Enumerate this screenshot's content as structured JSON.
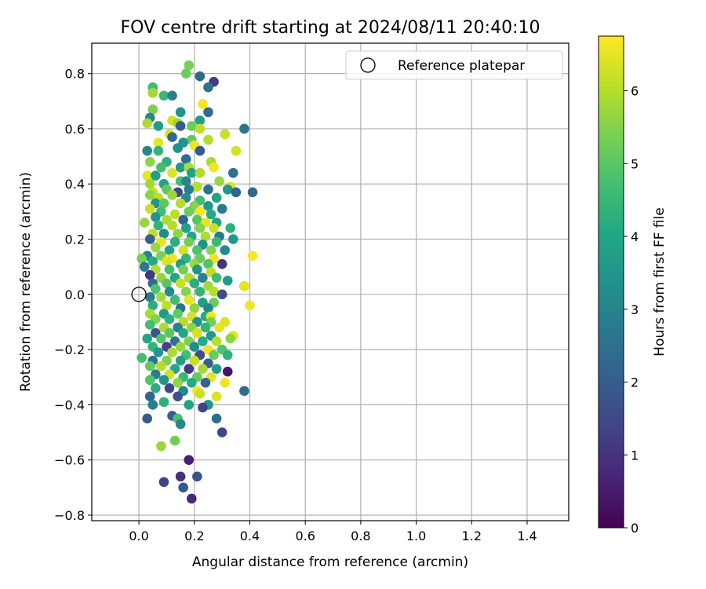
{
  "chart_data": {
    "type": "scatter",
    "title": "FOV centre drift starting at 2024/08/11 20:40:10",
    "xlabel": "Angular distance from reference (arcmin)",
    "ylabel": "Rotation from reference (arcmin)",
    "xlim": [
      -0.17,
      1.55
    ],
    "ylim": [
      -0.82,
      0.91
    ],
    "xticks": [
      0.0,
      0.2,
      0.4,
      0.6,
      0.8,
      1.0,
      1.2,
      1.4
    ],
    "xtick_labels": [
      "0.0",
      "0.2",
      "0.4",
      "0.6",
      "0.8",
      "1.0",
      "1.2",
      "1.4"
    ],
    "yticks": [
      -0.8,
      -0.6,
      -0.4,
      -0.2,
      0.0,
      0.2,
      0.4,
      0.6,
      0.8
    ],
    "ytick_labels": [
      "−0.8",
      "−0.6",
      "−0.4",
      "−0.2",
      "0.0",
      "0.2",
      "0.4",
      "0.6",
      "0.8"
    ],
    "grid": true,
    "legend": {
      "placement": "top-right",
      "entries": [
        "Reference platepar"
      ]
    },
    "reference_point": {
      "x": 0.0,
      "y": 0.0,
      "label": "Reference platepar"
    },
    "colorbar": {
      "label": "Hours from first FF file",
      "range": [
        0,
        6.75
      ],
      "ticks": [
        0,
        1,
        2,
        3,
        4,
        5,
        6
      ],
      "tick_labels": [
        "0",
        "1",
        "2",
        "3",
        "4",
        "5",
        "6"
      ],
      "colormap": "viridis"
    },
    "points": [
      [
        0.18,
        0.83,
        5.4
      ],
      [
        0.17,
        0.8,
        5.2
      ],
      [
        0.22,
        0.79,
        2.3
      ],
      [
        0.27,
        0.77,
        1.2
      ],
      [
        0.05,
        0.75,
        4.6
      ],
      [
        0.25,
        0.75,
        2.6
      ],
      [
        0.05,
        0.73,
        5.8
      ],
      [
        0.09,
        0.72,
        4.5
      ],
      [
        0.12,
        0.72,
        3.0
      ],
      [
        0.23,
        0.69,
        6.7
      ],
      [
        0.05,
        0.67,
        5.4
      ],
      [
        0.15,
        0.66,
        3.4
      ],
      [
        0.25,
        0.66,
        2.4
      ],
      [
        0.04,
        0.64,
        3.1
      ],
      [
        0.12,
        0.63,
        6.3
      ],
      [
        0.14,
        0.62,
        5.7
      ],
      [
        0.22,
        0.63,
        3.8
      ],
      [
        0.03,
        0.62,
        5.9
      ],
      [
        0.07,
        0.61,
        3.7
      ],
      [
        0.15,
        0.61,
        2.0
      ],
      [
        0.19,
        0.61,
        5.2
      ],
      [
        0.22,
        0.6,
        6.1
      ],
      [
        0.38,
        0.6,
        2.6
      ],
      [
        0.11,
        0.58,
        6.4
      ],
      [
        0.25,
        0.56,
        6.0
      ],
      [
        0.31,
        0.58,
        6.2
      ],
      [
        0.12,
        0.57,
        2.3
      ],
      [
        0.07,
        0.55,
        6.5
      ],
      [
        0.19,
        0.56,
        5.1
      ],
      [
        0.16,
        0.55,
        3.5
      ],
      [
        0.03,
        0.52,
        3.1
      ],
      [
        0.07,
        0.52,
        4.4
      ],
      [
        0.14,
        0.53,
        3.4
      ],
      [
        0.2,
        0.54,
        6.6
      ],
      [
        0.22,
        0.52,
        1.9
      ],
      [
        0.35,
        0.52,
        6.3
      ],
      [
        0.04,
        0.48,
        5.6
      ],
      [
        0.1,
        0.48,
        4.3
      ],
      [
        0.17,
        0.49,
        2.4
      ],
      [
        0.26,
        0.48,
        5.9
      ],
      [
        0.08,
        0.46,
        4.7
      ],
      [
        0.15,
        0.46,
        3.6
      ],
      [
        0.18,
        0.46,
        5.9
      ],
      [
        0.27,
        0.46,
        6.6
      ],
      [
        0.34,
        0.44,
        2.5
      ],
      [
        0.03,
        0.43,
        6.5
      ],
      [
        0.06,
        0.43,
        3.8
      ],
      [
        0.12,
        0.44,
        6.4
      ],
      [
        0.19,
        0.44,
        3.9
      ],
      [
        0.22,
        0.44,
        5.9
      ],
      [
        0.29,
        0.41,
        5.7
      ],
      [
        0.04,
        0.4,
        5.8
      ],
      [
        0.09,
        0.4,
        3.9
      ],
      [
        0.15,
        0.41,
        4.7
      ],
      [
        0.17,
        0.41,
        3.1
      ],
      [
        0.21,
        0.39,
        6.0
      ],
      [
        0.33,
        0.39,
        6.4
      ],
      [
        0.05,
        0.37,
        6.1
      ],
      [
        0.1,
        0.38,
        5.1
      ],
      [
        0.14,
        0.37,
        1.4
      ],
      [
        0.18,
        0.38,
        2.8
      ],
      [
        0.25,
        0.38,
        2.5
      ],
      [
        0.32,
        0.38,
        3.6
      ],
      [
        0.35,
        0.37,
        2.2
      ],
      [
        0.41,
        0.37,
        2.3
      ],
      [
        0.04,
        0.36,
        5.6
      ],
      [
        0.07,
        0.35,
        6.1
      ],
      [
        0.12,
        0.36,
        5.7
      ],
      [
        0.17,
        0.35,
        3.2
      ],
      [
        0.22,
        0.34,
        4.7
      ],
      [
        0.28,
        0.35,
        3.9
      ],
      [
        0.06,
        0.33,
        3.4
      ],
      [
        0.09,
        0.33,
        5.0
      ],
      [
        0.15,
        0.33,
        6.0
      ],
      [
        0.2,
        0.32,
        5.5
      ],
      [
        0.25,
        0.32,
        3.6
      ],
      [
        0.3,
        0.31,
        2.8
      ],
      [
        0.04,
        0.31,
        6.2
      ],
      [
        0.08,
        0.3,
        4.6
      ],
      [
        0.13,
        0.29,
        6.1
      ],
      [
        0.18,
        0.3,
        5.2
      ],
      [
        0.22,
        0.3,
        6.7
      ],
      [
        0.26,
        0.29,
        4.1
      ],
      [
        0.06,
        0.28,
        3.5
      ],
      [
        0.1,
        0.27,
        5.9
      ],
      [
        0.16,
        0.27,
        2.2
      ],
      [
        0.21,
        0.27,
        4.9
      ],
      [
        0.24,
        0.26,
        6.5
      ],
      [
        0.28,
        0.26,
        3.9
      ],
      [
        0.02,
        0.26,
        5.7
      ],
      [
        0.07,
        0.25,
        4.4
      ],
      [
        0.12,
        0.25,
        6.0
      ],
      [
        0.17,
        0.24,
        3.8
      ],
      [
        0.22,
        0.24,
        5.5
      ],
      [
        0.27,
        0.24,
        6.2
      ],
      [
        0.33,
        0.24,
        4.3
      ],
      [
        0.05,
        0.22,
        6.1
      ],
      [
        0.09,
        0.22,
        3.2
      ],
      [
        0.14,
        0.22,
        5.6
      ],
      [
        0.19,
        0.21,
        4.0
      ],
      [
        0.24,
        0.21,
        5.9
      ],
      [
        0.29,
        0.21,
        2.7
      ],
      [
        0.04,
        0.2,
        2.1
      ],
      [
        0.08,
        0.19,
        6.5
      ],
      [
        0.13,
        0.19,
        4.2
      ],
      [
        0.18,
        0.19,
        5.3
      ],
      [
        0.23,
        0.18,
        3.4
      ],
      [
        0.28,
        0.19,
        4.5
      ],
      [
        0.34,
        0.2,
        3.6
      ],
      [
        0.06,
        0.17,
        5.7
      ],
      [
        0.11,
        0.16,
        3.9
      ],
      [
        0.16,
        0.16,
        6.3
      ],
      [
        0.21,
        0.16,
        4.8
      ],
      [
        0.26,
        0.16,
        5.5
      ],
      [
        0.31,
        0.16,
        3.2
      ],
      [
        0.03,
        0.14,
        3.0
      ],
      [
        0.08,
        0.14,
        5.4
      ],
      [
        0.12,
        0.13,
        6.6
      ],
      [
        0.17,
        0.13,
        4.4
      ],
      [
        0.22,
        0.13,
        5.2
      ],
      [
        0.27,
        0.13,
        6.6
      ],
      [
        0.41,
        0.14,
        6.7
      ],
      [
        0.01,
        0.13,
        5.3
      ],
      [
        0.05,
        0.12,
        4.1
      ],
      [
        0.1,
        0.12,
        6.4
      ],
      [
        0.15,
        0.11,
        3.7
      ],
      [
        0.2,
        0.11,
        5.7
      ],
      [
        0.25,
        0.11,
        4.9
      ],
      [
        0.3,
        0.11,
        1.0
      ],
      [
        0.02,
        0.1,
        2.7
      ],
      [
        0.06,
        0.09,
        6.0
      ],
      [
        0.11,
        0.09,
        4.7
      ],
      [
        0.16,
        0.09,
        5.3
      ],
      [
        0.21,
        0.09,
        3.5
      ],
      [
        0.26,
        0.08,
        6.1
      ],
      [
        0.04,
        0.07,
        1.1
      ],
      [
        0.08,
        0.06,
        5.6
      ],
      [
        0.13,
        0.06,
        4.0
      ],
      [
        0.18,
        0.06,
        5.9
      ],
      [
        0.23,
        0.06,
        3.0
      ],
      [
        0.28,
        0.06,
        4.6
      ],
      [
        0.32,
        0.05,
        3.7
      ],
      [
        0.05,
        0.04,
        2.4
      ],
      [
        0.1,
        0.04,
        5.0
      ],
      [
        0.15,
        0.04,
        6.2
      ],
      [
        0.2,
        0.04,
        4.2
      ],
      [
        0.25,
        0.03,
        5.8
      ],
      [
        0.38,
        0.03,
        2.3
      ],
      [
        0.38,
        0.03,
        6.5
      ],
      [
        0.06,
        0.02,
        4.8
      ],
      [
        0.11,
        0.01,
        3.2
      ],
      [
        0.17,
        0.01,
        5.5
      ],
      [
        0.22,
        0.01,
        4.4
      ],
      [
        0.27,
        0.01,
        6.0
      ],
      [
        0.3,
        0.0,
        1.6
      ],
      [
        0.04,
        -0.01,
        2.9
      ],
      [
        0.08,
        -0.01,
        5.8
      ],
      [
        0.13,
        -0.02,
        4.6
      ],
      [
        0.18,
        -0.02,
        6.5
      ],
      [
        0.23,
        -0.03,
        3.8
      ],
      [
        0.27,
        -0.03,
        5.2
      ],
      [
        0.05,
        -0.04,
        4.2
      ],
      [
        0.1,
        -0.04,
        6.1
      ],
      [
        0.15,
        -0.05,
        2.5
      ],
      [
        0.2,
        -0.05,
        5.6
      ],
      [
        0.25,
        -0.05,
        3.1
      ],
      [
        0.4,
        -0.04,
        6.6
      ],
      [
        0.04,
        -0.07,
        5.9
      ],
      [
        0.09,
        -0.07,
        3.7
      ],
      [
        0.14,
        -0.07,
        5.1
      ],
      [
        0.19,
        -0.08,
        6.4
      ],
      [
        0.24,
        -0.08,
        4.1
      ],
      [
        0.26,
        -0.08,
        6.6
      ],
      [
        0.06,
        -0.09,
        5.5
      ],
      [
        0.11,
        -0.09,
        4.3
      ],
      [
        0.16,
        -0.1,
        6.0
      ],
      [
        0.21,
        -0.1,
        3.4
      ],
      [
        0.26,
        -0.1,
        5.3
      ],
      [
        0.31,
        -0.1,
        6.4
      ],
      [
        0.04,
        -0.11,
        4.7
      ],
      [
        0.09,
        -0.12,
        5.9
      ],
      [
        0.14,
        -0.12,
        3.0
      ],
      [
        0.19,
        -0.12,
        5.6
      ],
      [
        0.24,
        -0.12,
        4.4
      ],
      [
        0.29,
        -0.12,
        6.5
      ],
      [
        0.06,
        -0.14,
        1.8
      ],
      [
        0.11,
        -0.14,
        5.0
      ],
      [
        0.16,
        -0.14,
        4.0
      ],
      [
        0.21,
        -0.14,
        6.3
      ],
      [
        0.26,
        -0.15,
        3.6
      ],
      [
        0.34,
        -0.15,
        6.5
      ],
      [
        0.03,
        -0.16,
        3.9
      ],
      [
        0.08,
        -0.16,
        4.9
      ],
      [
        0.13,
        -0.17,
        2.6
      ],
      [
        0.18,
        -0.17,
        5.4
      ],
      [
        0.23,
        -0.17,
        4.1
      ],
      [
        0.28,
        -0.17,
        6.0
      ],
      [
        0.33,
        -0.16,
        5.6
      ],
      [
        0.05,
        -0.19,
        4.4
      ],
      [
        0.1,
        -0.19,
        1.3
      ],
      [
        0.15,
        -0.19,
        5.7
      ],
      [
        0.2,
        -0.19,
        3.3
      ],
      [
        0.25,
        -0.2,
        6.6
      ],
      [
        0.3,
        -0.2,
        4.9
      ],
      [
        0.07,
        -0.21,
        3.6
      ],
      [
        0.12,
        -0.21,
        5.9
      ],
      [
        0.17,
        -0.22,
        4.7
      ],
      [
        0.22,
        -0.22,
        1.6
      ],
      [
        0.27,
        -0.22,
        5.2
      ],
      [
        0.32,
        -0.22,
        4.3
      ],
      [
        0.01,
        -0.23,
        4.7
      ],
      [
        0.05,
        -0.24,
        2.6
      ],
      [
        0.1,
        -0.24,
        5.4
      ],
      [
        0.15,
        -0.24,
        3.8
      ],
      [
        0.2,
        -0.24,
        6.2
      ],
      [
        0.25,
        -0.25,
        2.0
      ],
      [
        0.04,
        -0.26,
        5.1
      ],
      [
        0.08,
        -0.26,
        6.0
      ],
      [
        0.13,
        -0.27,
        4.0
      ],
      [
        0.18,
        -0.27,
        1.1
      ],
      [
        0.23,
        -0.27,
        5.8
      ],
      [
        0.28,
        -0.27,
        3.7
      ],
      [
        0.06,
        -0.29,
        2.9
      ],
      [
        0.11,
        -0.29,
        6.3
      ],
      [
        0.16,
        -0.3,
        4.5
      ],
      [
        0.21,
        -0.3,
        5.1
      ],
      [
        0.26,
        -0.3,
        6.5
      ],
      [
        0.32,
        -0.28,
        0.4
      ],
      [
        0.04,
        -0.31,
        4.9
      ],
      [
        0.09,
        -0.31,
        3.4
      ],
      [
        0.14,
        -0.32,
        5.6
      ],
      [
        0.19,
        -0.32,
        4.1
      ],
      [
        0.24,
        -0.32,
        2.1
      ],
      [
        0.31,
        -0.32,
        6.6
      ],
      [
        0.06,
        -0.34,
        4.2
      ],
      [
        0.11,
        -0.34,
        1.4
      ],
      [
        0.16,
        -0.35,
        3.1
      ],
      [
        0.21,
        -0.35,
        6.7
      ],
      [
        0.38,
        -0.35,
        2.4
      ],
      [
        0.04,
        -0.37,
        2.3
      ],
      [
        0.14,
        -0.37,
        1.7
      ],
      [
        0.22,
        -0.36,
        6.2
      ],
      [
        0.28,
        -0.37,
        6.4
      ],
      [
        0.09,
        -0.39,
        4.3
      ],
      [
        0.18,
        -0.4,
        3.9
      ],
      [
        0.25,
        -0.4,
        3.5
      ],
      [
        0.05,
        -0.4,
        2.9
      ],
      [
        0.23,
        -0.41,
        1.3
      ],
      [
        0.12,
        -0.44,
        2.0
      ],
      [
        0.14,
        -0.45,
        4.8
      ],
      [
        0.15,
        -0.47,
        3.1
      ],
      [
        0.03,
        -0.45,
        1.9
      ],
      [
        0.28,
        -0.45,
        2.4
      ],
      [
        0.3,
        -0.5,
        1.5
      ],
      [
        0.13,
        -0.53,
        5.3
      ],
      [
        0.08,
        -0.55,
        5.7
      ],
      [
        0.18,
        -0.6,
        0.6
      ],
      [
        0.09,
        -0.68,
        1.3
      ],
      [
        0.15,
        -0.66,
        0.9
      ],
      [
        0.21,
        -0.66,
        1.7
      ],
      [
        0.16,
        -0.7,
        1.9
      ],
      [
        0.19,
        -0.74,
        0.8
      ]
    ]
  }
}
